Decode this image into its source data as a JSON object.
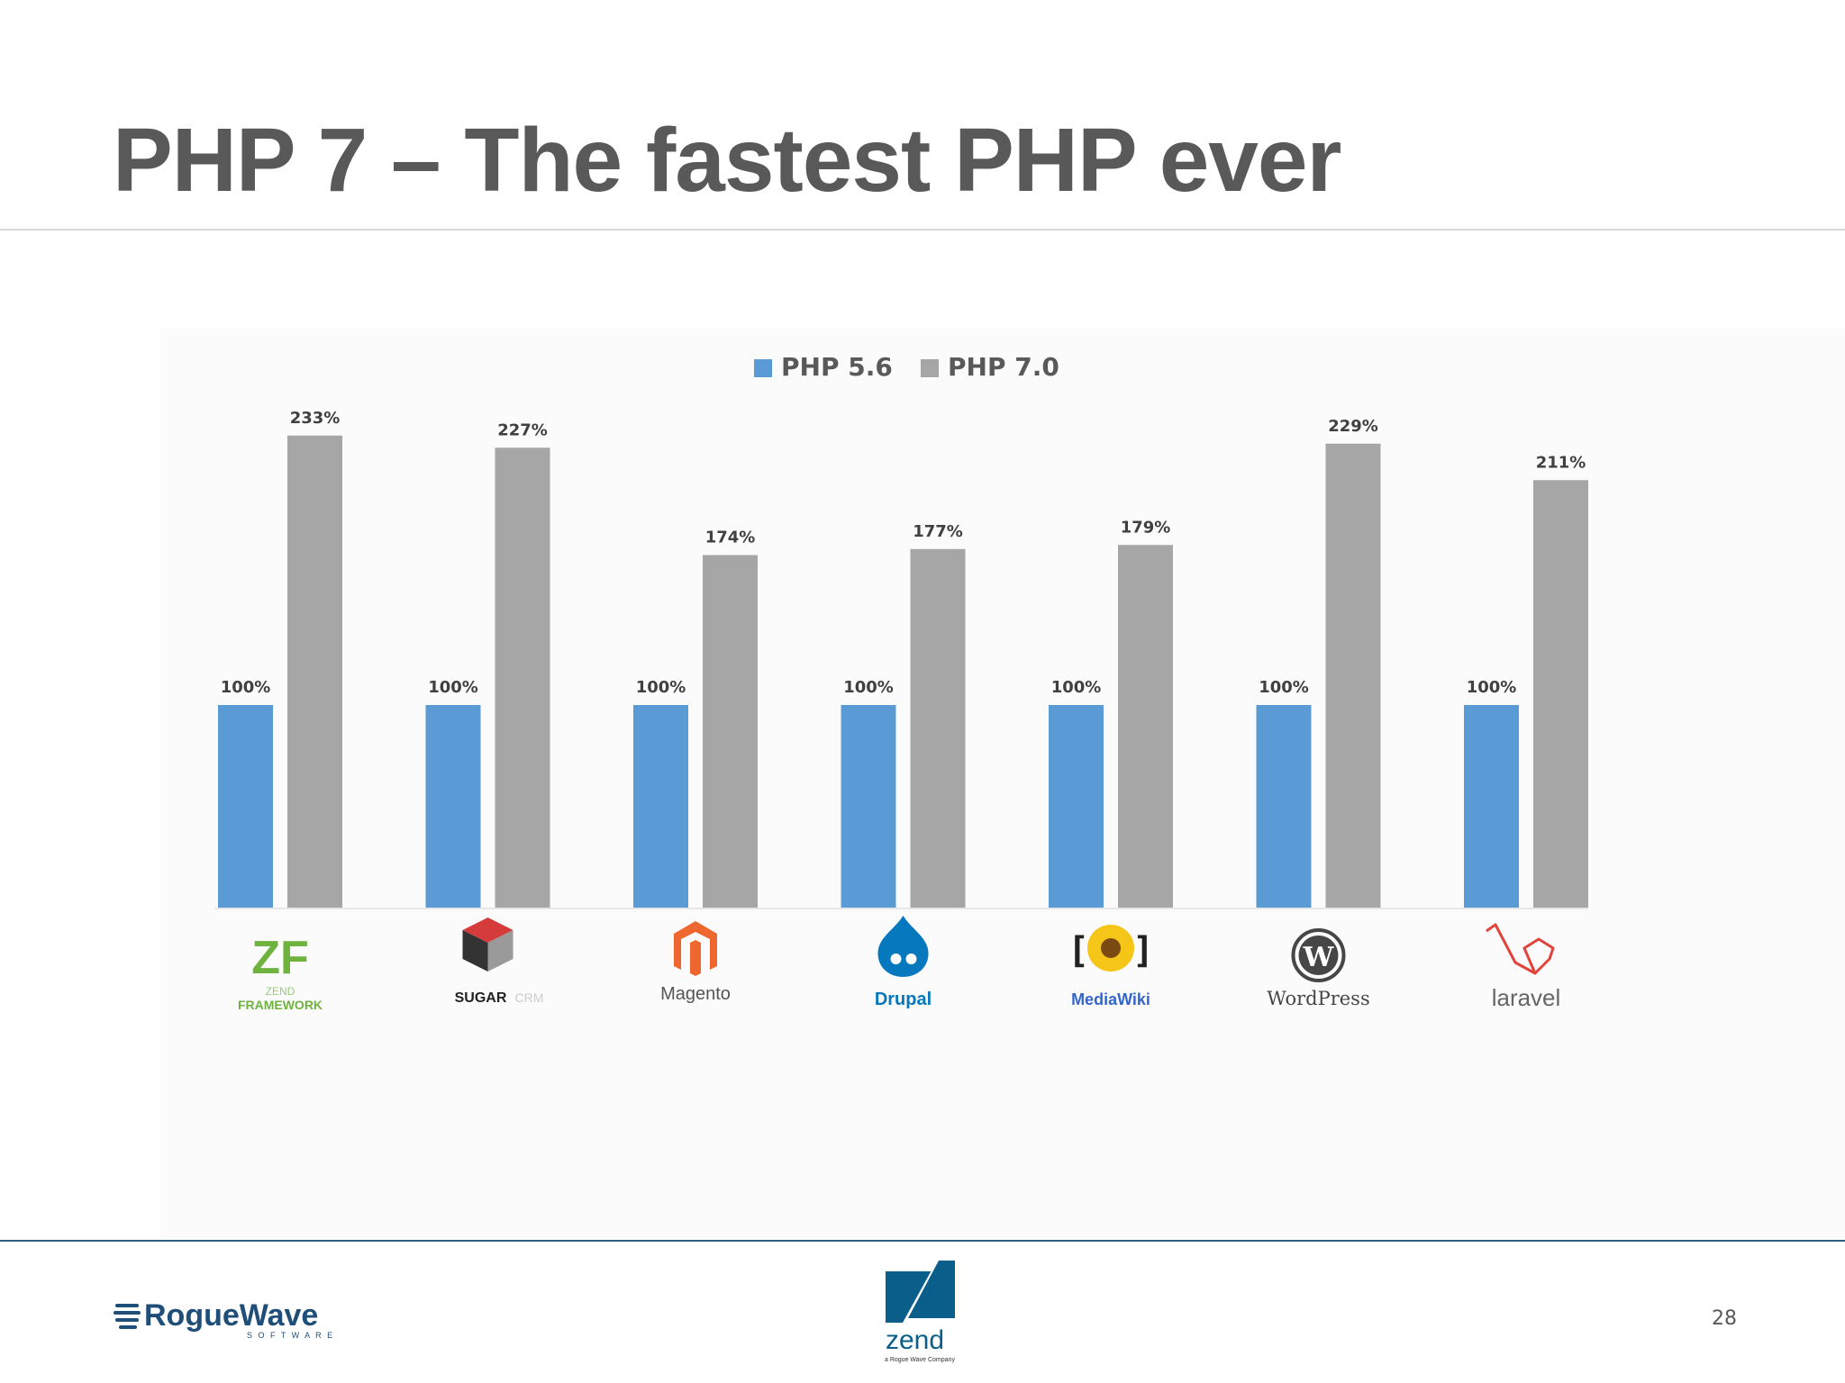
{
  "slide": {
    "title": "PHP 7 – The fastest PHP ever",
    "page_number": "28"
  },
  "footer": {
    "left_logo": "RogueWave",
    "left_logo_sub": "S O F T W A R E",
    "center_logo": "zend",
    "center_logo_sub": "a Rogue Wave Company"
  },
  "colors": {
    "php56": "#5b9bd5",
    "php70": "#a6a6a6",
    "title": "#595959",
    "footer_rule": "#2e5f82"
  },
  "chart_data": {
    "type": "bar",
    "title": "",
    "xlabel": "",
    "ylabel": "",
    "ylim": [
      0,
      240
    ],
    "grid": false,
    "legend_placement": "top-center",
    "categories": [
      "Zend Framework",
      "SugarCRM",
      "Magento",
      "Drupal",
      "MediaWiki",
      "WordPress",
      "laravel"
    ],
    "series": [
      {
        "name": "PHP 5.6",
        "values": [
          100,
          100,
          100,
          100,
          100,
          100,
          100
        ],
        "labels": [
          "100%",
          "100%",
          "100%",
          "100%",
          "100%",
          "100%",
          "100%"
        ],
        "color": "#5b9bd5"
      },
      {
        "name": "PHP 7.0",
        "values": [
          233,
          227,
          174,
          177,
          179,
          229,
          211
        ],
        "labels": [
          "233%",
          "227%",
          "174%",
          "177%",
          "179%",
          "229%",
          "211%"
        ],
        "color": "#a6a6a6"
      }
    ],
    "category_logos": [
      {
        "name": "zend-framework",
        "text": "ZF",
        "sub": "ZEND",
        "sub2": "FRAMEWORK",
        "color": "#6fb33f"
      },
      {
        "name": "sugarcrm",
        "text": "SUGAR",
        "sub": "CRM",
        "color": "#222222"
      },
      {
        "name": "magento",
        "text": "Magento",
        "color": "#555555"
      },
      {
        "name": "drupal",
        "text": "Drupal",
        "color": "#0678be"
      },
      {
        "name": "mediawiki",
        "text": "MediaWiki",
        "color": "#36c"
      },
      {
        "name": "wordpress",
        "text": "WordPress",
        "color": "#464646"
      },
      {
        "name": "laravel",
        "text": "laravel",
        "color": "#666666"
      }
    ]
  }
}
